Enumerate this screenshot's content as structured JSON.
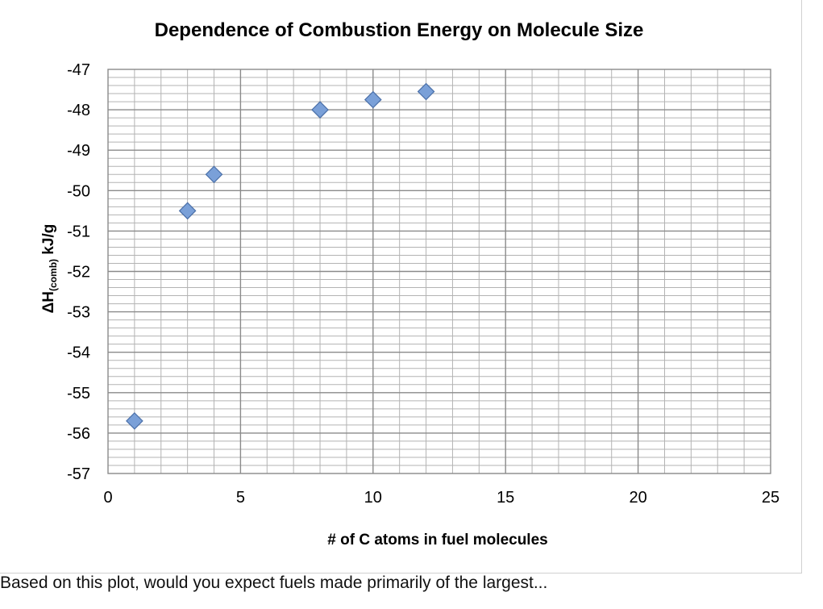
{
  "chart_data": {
    "type": "scatter",
    "title": "Dependence of Combustion Energy on Molecule Size",
    "xlabel": "# of C atoms in fuel molecules",
    "ylabel": {
      "prefix": "ΔH",
      "subscript": "(comb)",
      "suffix": " kJ/g"
    },
    "xlim": [
      0,
      25
    ],
    "ylim": [
      -57,
      -47
    ],
    "x_ticks": [
      0,
      5,
      10,
      15,
      20,
      25
    ],
    "y_ticks": [
      -47,
      -48,
      -49,
      -50,
      -51,
      -52,
      -53,
      -54,
      -55,
      -56,
      -57
    ],
    "grid": true,
    "legend": "none",
    "marker": "diamond",
    "marker_color": "#7aa0d8",
    "points": [
      {
        "x": 1,
        "y": -55.7
      },
      {
        "x": 3,
        "y": -50.5
      },
      {
        "x": 4,
        "y": -49.6
      },
      {
        "x": 8,
        "y": -48.0
      },
      {
        "x": 10,
        "y": -47.75
      },
      {
        "x": 12,
        "y": -47.55
      }
    ]
  },
  "caption": "Based on this plot, would you expect fuels made primarily of the largest..."
}
